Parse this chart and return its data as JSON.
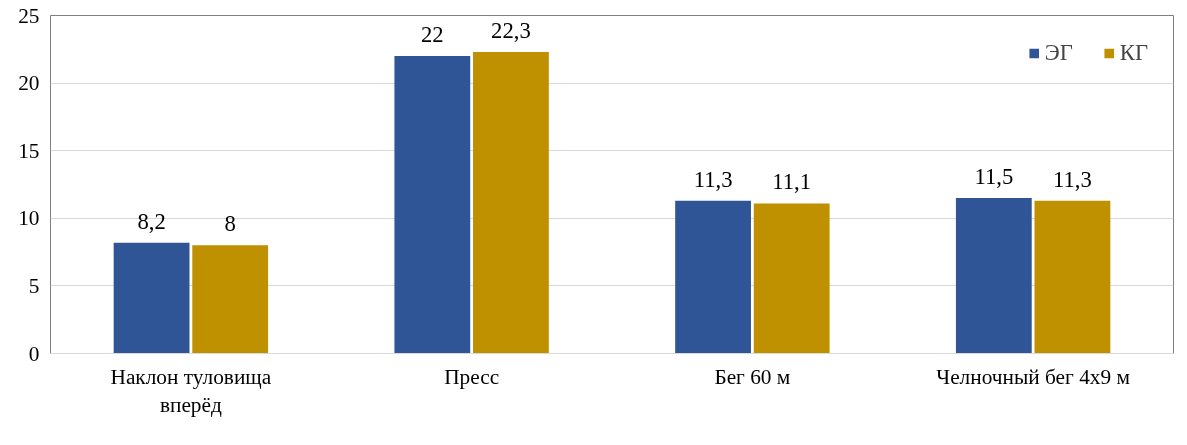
{
  "chart_data": {
    "type": "bar",
    "categories": [
      "Наклон туловища вперёд",
      "Пресс",
      "Бег 60 м",
      "Челночный бег 4х9 м"
    ],
    "series": [
      {
        "name": "ЭГ",
        "color": "#2f5597",
        "values": [
          8.2,
          22,
          11.3,
          11.5
        ],
        "value_labels": [
          "8,2",
          "22",
          "11,3",
          "11,5"
        ]
      },
      {
        "name": "КГ",
        "color": "#bf9000",
        "values": [
          8,
          22.3,
          11.1,
          11.3
        ],
        "value_labels": [
          "8",
          "22,3",
          "11,1",
          "11,3"
        ]
      }
    ],
    "ylim": [
      0,
      25
    ],
    "yticks": [
      0,
      5,
      10,
      15,
      20,
      25
    ],
    "grid": "y",
    "legend": "top right"
  }
}
